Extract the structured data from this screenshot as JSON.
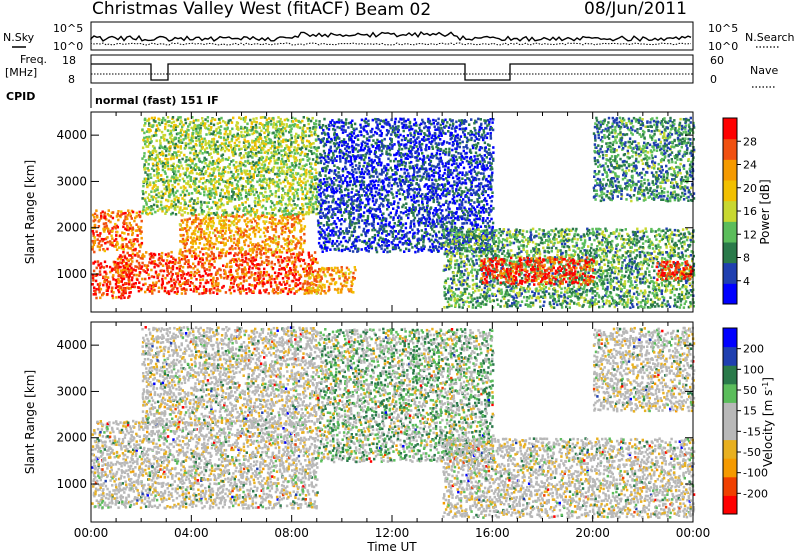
{
  "header": {
    "station": "Christmas Valley West (fitACF)",
    "beam": "Beam 02",
    "date": "08/Jun/2011"
  },
  "strip_panels": {
    "sky_label": "N.Sky",
    "search_label": "N.Search",
    "sky_ticks": [
      "10^5",
      "10^0"
    ],
    "search_ticks": [
      "10^5",
      "10^0"
    ],
    "freq_label_1": "Freq.",
    "freq_label_2": "[MHz]",
    "freq_ticks": [
      "18",
      "8"
    ],
    "nave_label": "Nave",
    "nave_ticks": [
      "60",
      "0"
    ],
    "cpid_label": "CPID",
    "cpid_value": "normal (fast) 151 IF"
  },
  "chart_data": [
    {
      "type": "heatmap",
      "name": "Power",
      "ylabel": "Slant Range [km]",
      "xlabel": "Time UT",
      "x_ticks": [
        "00:00",
        "04:00",
        "08:00",
        "12:00",
        "16:00",
        "20:00",
        "00:00"
      ],
      "xlim_hours": [
        0,
        24
      ],
      "y_ticks": [
        1000,
        2000,
        3000,
        4000
      ],
      "ylim_km": [
        180,
        4500
      ],
      "colorbar": {
        "label": "Power [dB]",
        "ticks": [
          "28",
          "24",
          "20",
          "16",
          "12",
          "8",
          "4"
        ],
        "range": [
          0,
          30
        ],
        "colors": [
          "#0000ff",
          "#1f3fb0",
          "#2a7a4a",
          "#5bbd5b",
          "#c8d830",
          "#f2c000",
          "#f59a00",
          "#f05010",
          "#ff0000"
        ]
      },
      "regions": [
        {
          "t0": 0.0,
          "t1": 1.5,
          "r0": 500,
          "r1": 1300,
          "level": 0.9
        },
        {
          "t0": 0.0,
          "t1": 2.0,
          "r0": 1500,
          "r1": 2400,
          "level": 0.8
        },
        {
          "t0": 1.0,
          "t1": 9.0,
          "r0": 600,
          "r1": 1500,
          "level": 0.85
        },
        {
          "t0": 3.5,
          "t1": 8.5,
          "r0": 1500,
          "r1": 2300,
          "level": 0.7
        },
        {
          "t0": 2.0,
          "t1": 9.0,
          "r0": 2300,
          "r1": 4400,
          "level": 0.45
        },
        {
          "t0": 8.5,
          "t1": 10.5,
          "r0": 600,
          "r1": 1200,
          "level": 0.7
        },
        {
          "t0": 9.0,
          "t1": 16.0,
          "r0": 1500,
          "r1": 4400,
          "level": 0.15
        },
        {
          "t0": 14.0,
          "t1": 24.0,
          "r0": 300,
          "r1": 2000,
          "level": 0.35
        },
        {
          "t0": 15.5,
          "t1": 20.0,
          "r0": 800,
          "r1": 1400,
          "level": 0.9
        },
        {
          "t0": 22.5,
          "t1": 24.0,
          "r0": 900,
          "r1": 1300,
          "level": 0.9
        },
        {
          "t0": 20.0,
          "t1": 24.0,
          "r0": 2600,
          "r1": 4400,
          "level": 0.3
        }
      ]
    },
    {
      "type": "heatmap",
      "name": "Velocity",
      "ylabel": "Slant Range [km]",
      "xlabel": "Time UT",
      "x_ticks": [
        "00:00",
        "04:00",
        "08:00",
        "12:00",
        "16:00",
        "20:00",
        "00:00"
      ],
      "xlim_hours": [
        0,
        24
      ],
      "y_ticks": [
        1000,
        2000,
        3000,
        4000
      ],
      "ylim_km": [
        180,
        4500
      ],
      "colorbar": {
        "label": "Velocity [m s^-1]",
        "ticks": [
          "200",
          "100",
          "50",
          "15",
          "-15",
          "-50",
          "-100",
          "-200"
        ],
        "range": [
          -250,
          250
        ],
        "colors": [
          "#ff0000",
          "#f04000",
          "#f59a00",
          "#e8b020",
          "#b8b8b8",
          "#b8b8b8",
          "#5bbd5b",
          "#2a7a4a",
          "#1f3fb0",
          "#0000ff"
        ]
      },
      "regions": [
        {
          "t0": 0.0,
          "t1": 9.0,
          "r0": 500,
          "r1": 2400,
          "level": 0.5
        },
        {
          "t0": 2.0,
          "t1": 9.0,
          "r0": 2300,
          "r1": 4400,
          "level": 0.35
        },
        {
          "t0": 9.0,
          "t1": 16.0,
          "r0": 1500,
          "r1": 4400,
          "level": 0.6
        },
        {
          "t0": 14.0,
          "t1": 24.0,
          "r0": 300,
          "r1": 2000,
          "level": 0.5
        },
        {
          "t0": 20.0,
          "t1": 24.0,
          "r0": 2600,
          "r1": 4400,
          "level": 0.5
        }
      ]
    }
  ]
}
